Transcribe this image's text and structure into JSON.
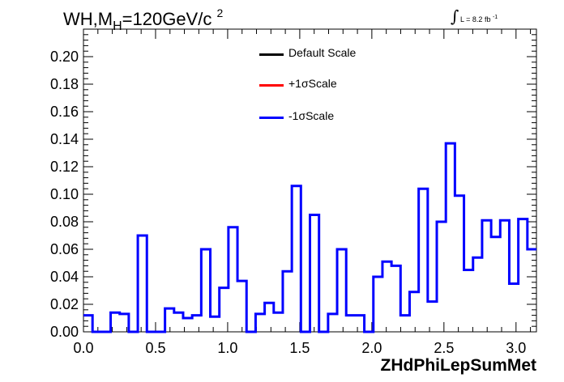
{
  "title": {
    "main": "WH,M",
    "sub": "H",
    "rest": "=120GeV/c",
    "sup": "2"
  },
  "lumi": {
    "integral": "∫",
    "text": "L = 8.2 fb",
    "sup": "-1"
  },
  "legend": [
    {
      "label": "Default Scale",
      "color": "#000000"
    },
    {
      "label": "+1σScale",
      "color": "#ff0000"
    },
    {
      "label": "-1σScale",
      "color": "#0000ff"
    }
  ],
  "chart_data": {
    "type": "histogram",
    "xlabel": "ZHdPhiLepSumMet",
    "ylabel": "",
    "xlim": [
      0,
      3.1416
    ],
    "ylim": [
      0,
      0.22
    ],
    "x_ticks": [
      0.0,
      0.5,
      1.0,
      1.5,
      2.0,
      2.5,
      3.0
    ],
    "x_tick_labels": [
      "0.0",
      "0.5",
      "1.0",
      "1.5",
      "2.0",
      "2.5",
      "3.0"
    ],
    "y_ticks": [
      0.0,
      0.02,
      0.04,
      0.06,
      0.08,
      0.1,
      0.12,
      0.14,
      0.16,
      0.18,
      0.2
    ],
    "y_tick_labels": [
      "0.00",
      "0.02",
      "0.04",
      "0.06",
      "0.08",
      "0.10",
      "0.12",
      "0.14",
      "0.16",
      "0.18",
      "0.20"
    ],
    "bin_edges_range": [
      0,
      3.1416
    ],
    "n_bins": 50,
    "series": [
      {
        "name": "-1σScale",
        "color": "#0000ff",
        "values": [
          0.012,
          0.0,
          0.0,
          0.014,
          0.013,
          0.0,
          0.07,
          0.0,
          0.0,
          0.017,
          0.014,
          0.01,
          0.012,
          0.06,
          0.011,
          0.032,
          0.076,
          0.037,
          0.0,
          0.013,
          0.021,
          0.014,
          0.044,
          0.106,
          0.0,
          0.085,
          0.0,
          0.013,
          0.06,
          0.012,
          0.012,
          0.0,
          0.04,
          0.051,
          0.048,
          0.012,
          0.029,
          0.104,
          0.022,
          0.08,
          0.137,
          0.099,
          0.045,
          0.054,
          0.081,
          0.069,
          0.081,
          0.035,
          0.082,
          0.06
        ]
      }
    ]
  }
}
